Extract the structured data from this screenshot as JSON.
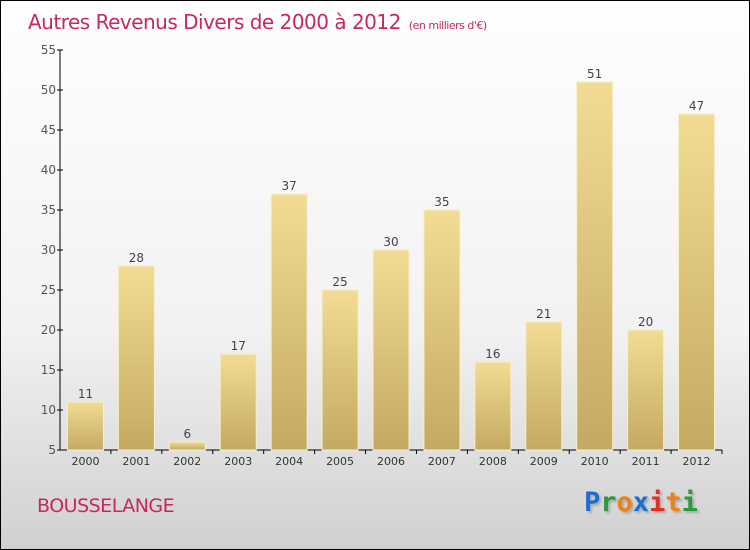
{
  "title": "Autres Revenus Divers de 2000 à 2012",
  "subtitle": "(en milliers d'€)",
  "place": "BOUSSELANGE",
  "logo": {
    "p1": "P",
    "p2": "r",
    "p3": "o",
    "p4": "x",
    "p5": "i",
    "p6": "t",
    "p7": "i"
  },
  "colors": {
    "title": "#c8285a",
    "bar_top": "#f2dc94",
    "bar_bottom": "#c4a962"
  },
  "chart_data": {
    "type": "bar",
    "title": "Autres Revenus Divers de 2000 à 2012",
    "xlabel": "",
    "ylabel": "",
    "categories": [
      "2000",
      "2001",
      "2002",
      "2003",
      "2004",
      "2005",
      "2006",
      "2007",
      "2008",
      "2009",
      "2010",
      "2011",
      "2012"
    ],
    "values": [
      11,
      28,
      6,
      17,
      37,
      25,
      30,
      35,
      16,
      21,
      51,
      20,
      47
    ],
    "ylim": [
      5,
      55
    ],
    "yticks": [
      5,
      10,
      15,
      20,
      25,
      30,
      35,
      40,
      45,
      50,
      55
    ],
    "grid": false
  }
}
